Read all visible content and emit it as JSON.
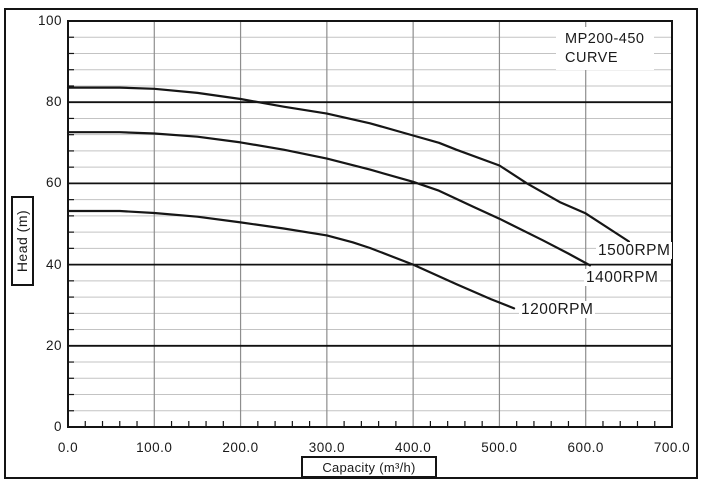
{
  "colors": {
    "background": "#ffffff",
    "frame": "#141414",
    "curve": "#161616",
    "grid_minor": "#c3c3c3",
    "grid_major_vertical": "#8e8e8e",
    "grid_major_horizontal": "#111111",
    "text": "#1a1a1a"
  },
  "chart_data": {
    "type": "line",
    "title": "MP200-450 CURVE",
    "title_lines": [
      "MP200-450",
      "CURVE"
    ],
    "xlabel": "Capacity (m³/h)",
    "ylabel": "Head (m)",
    "xlim": [
      0,
      700
    ],
    "ylim": [
      0,
      100
    ],
    "x_major_step": 100,
    "x_minor_tick_step": 20,
    "y_major_step": 20,
    "y_minor_grid_step": 4,
    "grid": "on",
    "legend_position": "inline-labels-right-of-curves",
    "x_tick_labels": [
      "0.0",
      "100.0",
      "200.0",
      "300.0",
      "400.0",
      "500.0",
      "600.0",
      "700.0"
    ],
    "y_tick_labels": [
      "100",
      "80",
      "60",
      "40",
      "20",
      "0"
    ],
    "series": [
      {
        "name": "1500RPM",
        "points": [
          [
            0,
            83.6
          ],
          [
            60,
            83.6
          ],
          [
            100,
            83.3
          ],
          [
            150,
            82.3
          ],
          [
            200,
            80.8
          ],
          [
            250,
            78.9
          ],
          [
            300,
            77.2
          ],
          [
            350,
            74.8
          ],
          [
            400,
            71.8
          ],
          [
            430,
            70.0
          ],
          [
            450,
            68.3
          ],
          [
            500,
            64.4
          ],
          [
            532,
            60.0
          ],
          [
            570,
            55.4
          ],
          [
            600,
            52.6
          ],
          [
            650,
            45.7
          ]
        ]
      },
      {
        "name": "1400RPM",
        "points": [
          [
            0,
            72.6
          ],
          [
            60,
            72.6
          ],
          [
            100,
            72.3
          ],
          [
            150,
            71.5
          ],
          [
            200,
            70.1
          ],
          [
            250,
            68.3
          ],
          [
            300,
            66.1
          ],
          [
            350,
            63.4
          ],
          [
            400,
            60.4
          ],
          [
            430,
            58.2
          ],
          [
            470,
            54.2
          ],
          [
            500,
            51.3
          ],
          [
            550,
            46.0
          ],
          [
            580,
            42.7
          ],
          [
            605,
            39.8
          ]
        ]
      },
      {
        "name": "1200RPM",
        "points": [
          [
            0,
            53.2
          ],
          [
            60,
            53.2
          ],
          [
            100,
            52.7
          ],
          [
            150,
            51.8
          ],
          [
            200,
            50.4
          ],
          [
            250,
            48.9
          ],
          [
            300,
            47.2
          ],
          [
            330,
            45.5
          ],
          [
            350,
            44.1
          ],
          [
            400,
            40.0
          ],
          [
            450,
            35.2
          ],
          [
            490,
            31.5
          ],
          [
            517,
            29.2
          ]
        ]
      }
    ]
  }
}
